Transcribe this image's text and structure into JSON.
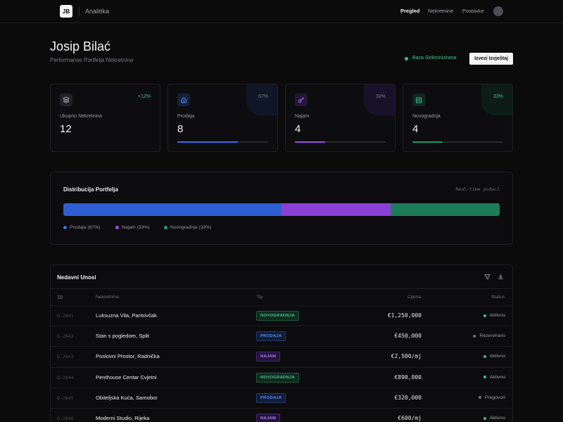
{
  "colors": {
    "blue": "#2f5ed3",
    "purple": "#8a3fd6",
    "green": "#1d7d5a",
    "green_text": "#45c78f",
    "blue_text": "#5a8ff0",
    "purple_text": "#b07ef0"
  },
  "topbar": {
    "logo": "JB",
    "brand": "Analitika",
    "nav": [
      "Pregled",
      "Nekretnine",
      "Postavke"
    ],
    "avatar_icon": "avatar"
  },
  "header": {
    "title": "Josip Bilać",
    "subtitle": "Performanse Portfelja Nekretnina",
    "sync": "Baza Sinkronizirana",
    "export": "Izvezi Izvještaj"
  },
  "cards": [
    {
      "icon": "layers-icon",
      "label": "Ukupno Nekretnina",
      "value": "12",
      "pct": "+12%",
      "fill": 0
    },
    {
      "icon": "home-icon",
      "label": "Prodaja",
      "value": "8",
      "pct": "67%",
      "fill": 0.67
    },
    {
      "icon": "key-icon",
      "label": "Najam",
      "value": "4",
      "pct": "33%",
      "fill": 0.33
    },
    {
      "icon": "building-icon",
      "label": "Novogradnja",
      "value": "4",
      "pct": "33%",
      "fill": 0.33
    }
  ],
  "distribution": {
    "title": "Distribucija Portfelja",
    "meta": "Real-time podaci",
    "segments": [
      {
        "label": "Prodaja (67%)",
        "value": 0.5
      },
      {
        "label": "Najam (33%)",
        "value": 0.25
      },
      {
        "label": "Novogradnja (33%)",
        "value": 0.25
      }
    ]
  },
  "table": {
    "title": "Nedavni Unosi",
    "columns": [
      "ID",
      "Nekretnina",
      "Tip",
      "Cijena",
      "Status"
    ],
    "rows": [
      {
        "id": "Q-2841",
        "name": "Luksuzna Vila, Pantovčak",
        "tip": "NOVOGRADNJA",
        "price": "€1,250,000",
        "status": "Aktivno"
      },
      {
        "id": "Q-2842",
        "name": "Stan s pogledom, Split",
        "tip": "PRODAJA",
        "price": "€450,000",
        "status": "Rezervirano"
      },
      {
        "id": "Q-2843",
        "name": "Poslovni Prostor, Radnička",
        "tip": "NAJAM",
        "price": "€2,500/mj",
        "status": "Aktivno"
      },
      {
        "id": "Q-2844",
        "name": "Penthouse Centar Cvjetni",
        "tip": "NOVOGRADNJA",
        "price": "€890,000",
        "status": "Aktivno"
      },
      {
        "id": "Q-2845",
        "name": "Obiteljska Kuća, Samobor",
        "tip": "PRODAJA",
        "price": "€320,000",
        "status": "Pregovori"
      },
      {
        "id": "Q-2846",
        "name": "Moderni Studio, Rijeka",
        "tip": "NAJAM",
        "price": "€600/mj",
        "status": "Aktivno"
      }
    ]
  }
}
